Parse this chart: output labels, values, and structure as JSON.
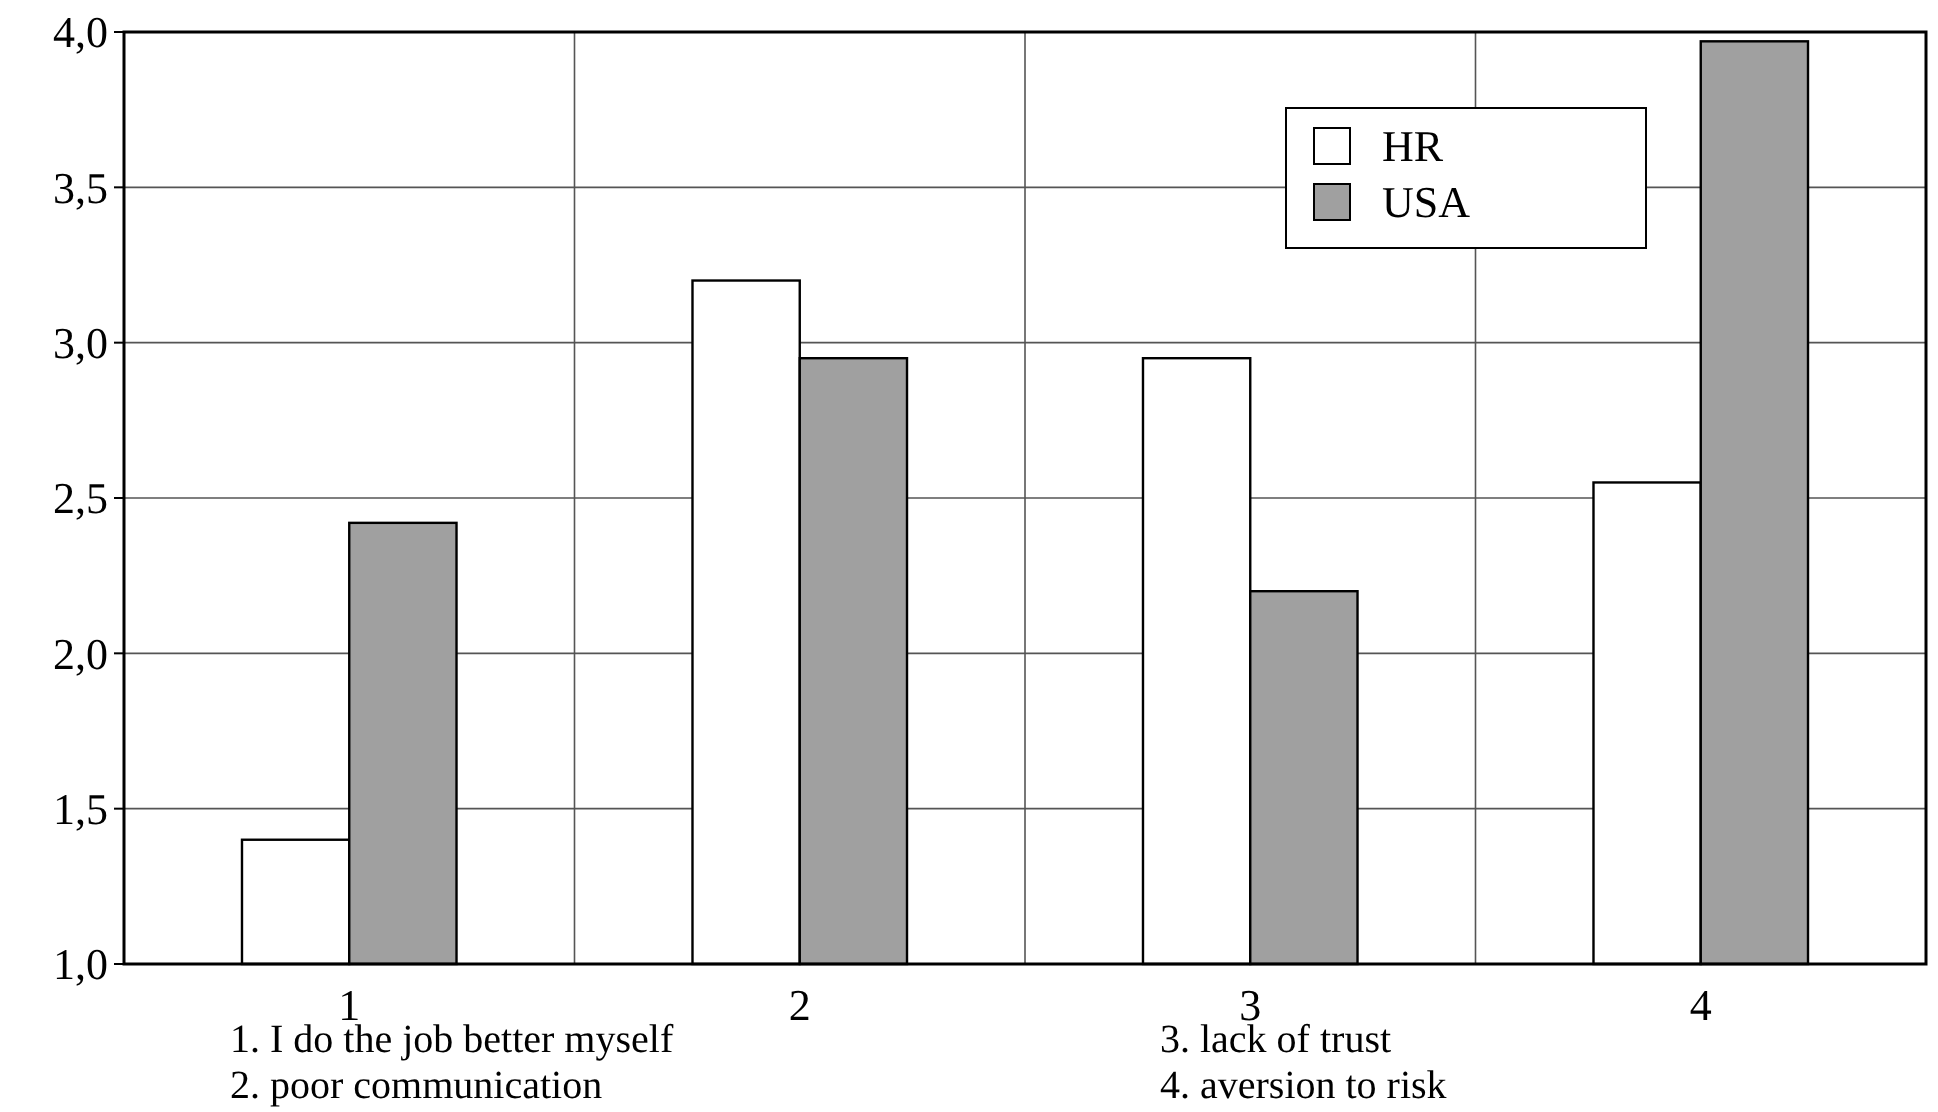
{
  "chart_data": {
    "type": "bar",
    "categories": [
      "1",
      "2",
      "3",
      "4"
    ],
    "series": [
      {
        "name": "HR",
        "color": "#ffffff",
        "values": [
          1.4,
          3.2,
          2.95,
          2.55
        ]
      },
      {
        "name": "USA",
        "color": "#a0a0a0",
        "values": [
          2.42,
          2.95,
          2.2,
          3.97
        ]
      }
    ],
    "ylim": [
      1,
      4
    ],
    "yticks": [
      {
        "value": 1,
        "label": "1,0"
      },
      {
        "value": 1.5,
        "label": "1,5"
      },
      {
        "value": 2,
        "label": "2,0"
      },
      {
        "value": 2.5,
        "label": "2,5"
      },
      {
        "value": 3,
        "label": "3,0"
      },
      {
        "value": 3.5,
        "label": "3,5"
      },
      {
        "value": 4,
        "label": "4,0"
      }
    ],
    "grid": true,
    "legend": "top right",
    "annotations": [
      "1. I do the job better myself",
      "2. poor communication",
      "3. lack of trust",
      "4. aversion to risk"
    ]
  }
}
